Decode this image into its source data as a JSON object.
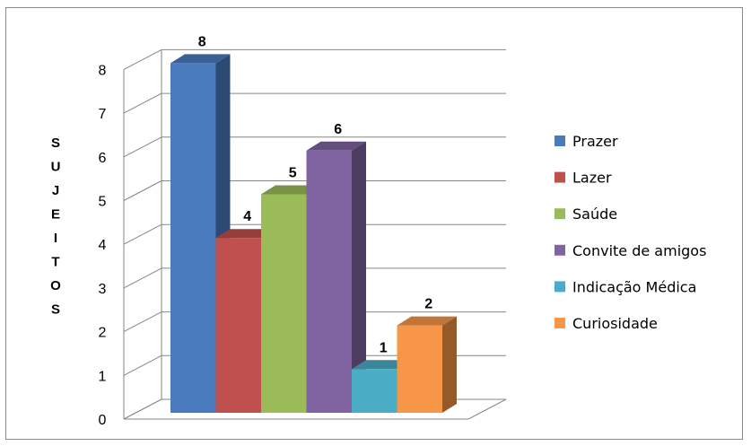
{
  "chart_data": {
    "type": "bar",
    "title": "",
    "xlabel": "",
    "ylabel": "SUJEITOS",
    "ylim": [
      0,
      8
    ],
    "yticks": [
      "0",
      "1",
      "2",
      "3",
      "4",
      "5",
      "6",
      "7",
      "8"
    ],
    "grid": true,
    "legend_position": "right",
    "series": [
      {
        "name": "Prazer",
        "value": 8,
        "label": "8",
        "color": "#4a7bbf"
      },
      {
        "name": "Lazer",
        "value": 4,
        "label": "4",
        "color": "#c0504d"
      },
      {
        "name": "Saúde",
        "value": 5,
        "label": "5",
        "color": "#9bbb59"
      },
      {
        "name": "Convite de amigos",
        "value": 6,
        "label": "6",
        "color": "#8064a2"
      },
      {
        "name": "Indicação Médica",
        "value": 1,
        "label": "1",
        "color": "#4bacc6"
      },
      {
        "name": "Curiosidade",
        "value": 2,
        "label": "2",
        "color": "#f79646"
      }
    ]
  }
}
